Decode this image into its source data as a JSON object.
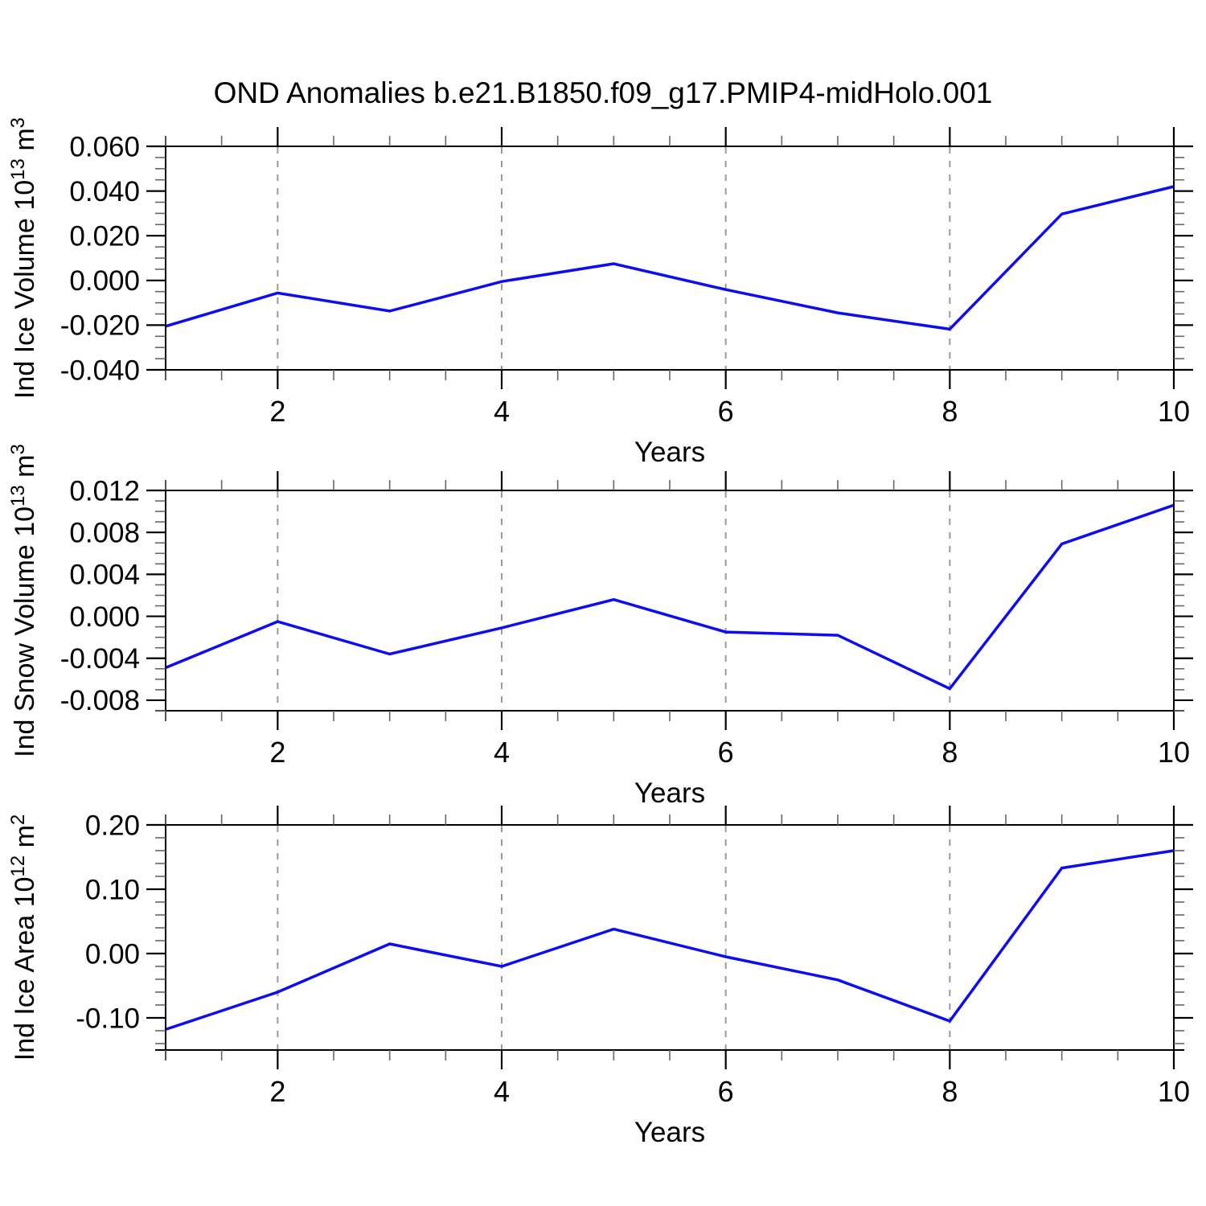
{
  "title": "OND Anomalies b.e21.B1850.f09_g17.PMIP4-midHolo.001",
  "colors": {
    "line": "#0d0df0",
    "axis": "#000000",
    "minor_tick": "#666666",
    "grid": "#9a9a9a",
    "text": "#000000",
    "background": "#ffffff"
  },
  "x_axis": {
    "label": "Years",
    "range": [
      1,
      10
    ],
    "major_ticks": [
      2,
      4,
      6,
      8,
      10
    ],
    "major_tick_labels": [
      "2",
      "4",
      "6",
      "8",
      "10"
    ],
    "minor_step": 0.5,
    "gridlines": [
      2,
      4,
      6,
      8
    ],
    "grid_style": "dashed"
  },
  "chart_data": [
    {
      "id": "ind-ice-volume",
      "type": "line",
      "ylabel_plain": "Ind Ice Volume 10^13 m^3",
      "ylabel_segments": [
        {
          "t": "Ind Ice Volume 10",
          "sup": false
        },
        {
          "t": "13",
          "sup": true
        },
        {
          "t": " m",
          "sup": false
        },
        {
          "t": "3",
          "sup": true
        }
      ],
      "ylim": [
        -0.04,
        0.06
      ],
      "y_major_ticks": [
        {
          "v": 0.06,
          "label": "0.060"
        },
        {
          "v": 0.04,
          "label": "0.040"
        },
        {
          "v": 0.02,
          "label": "0.020"
        },
        {
          "v": 0.0,
          "label": "0.000"
        },
        {
          "v": -0.02,
          "label": "-0.020"
        },
        {
          "v": -0.04,
          "label": "-0.040"
        }
      ],
      "y_minor_step": 0.005,
      "x": [
        1,
        2,
        3,
        4,
        5,
        6,
        7,
        8,
        9,
        10
      ],
      "values": [
        -0.0205,
        -0.0056,
        -0.0137,
        -0.0005,
        0.0075,
        -0.0041,
        -0.0145,
        -0.0218,
        0.0297,
        0.042
      ]
    },
    {
      "id": "ind-snow-volume",
      "type": "line",
      "ylabel_plain": "Ind Snow Volume 10^13 m^3",
      "ylabel_segments": [
        {
          "t": "Ind Snow Volume 10",
          "sup": false
        },
        {
          "t": "13",
          "sup": true
        },
        {
          "t": " m",
          "sup": false
        },
        {
          "t": "3",
          "sup": true
        }
      ],
      "ylim": [
        -0.009,
        0.012
      ],
      "y_major_ticks": [
        {
          "v": 0.012,
          "label": "0.012"
        },
        {
          "v": 0.008,
          "label": "0.008"
        },
        {
          "v": 0.004,
          "label": "0.004"
        },
        {
          "v": 0.0,
          "label": "0.000"
        },
        {
          "v": -0.004,
          "label": "-0.004"
        },
        {
          "v": -0.008,
          "label": "-0.008"
        }
      ],
      "y_minor_step": 0.001,
      "x": [
        1,
        2,
        3,
        4,
        5,
        6,
        7,
        8,
        9,
        10
      ],
      "values": [
        -0.0049,
        -0.0005,
        -0.0036,
        -0.0011,
        0.0016,
        -0.0015,
        -0.0018,
        -0.0069,
        0.0069,
        0.0106
      ]
    },
    {
      "id": "ind-ice-area",
      "type": "line",
      "ylabel_plain": "Ind Ice Area 10^12 m^2",
      "ylabel_segments": [
        {
          "t": "Ind Ice Area 10",
          "sup": false
        },
        {
          "t": "12",
          "sup": true
        },
        {
          "t": " m",
          "sup": false
        },
        {
          "t": "2",
          "sup": true
        }
      ],
      "ylim": [
        -0.15,
        0.2
      ],
      "y_major_ticks": [
        {
          "v": 0.2,
          "label": "0.20"
        },
        {
          "v": 0.1,
          "label": "0.10"
        },
        {
          "v": 0.0,
          "label": "0.00"
        },
        {
          "v": -0.1,
          "label": "-0.10"
        }
      ],
      "y_minor_step": 0.02,
      "x": [
        1,
        2,
        3,
        4,
        5,
        6,
        7,
        8,
        9,
        10
      ],
      "values": [
        -0.118,
        -0.06,
        0.015,
        -0.02,
        0.038,
        -0.005,
        -0.041,
        -0.105,
        0.133,
        0.16
      ]
    }
  ]
}
